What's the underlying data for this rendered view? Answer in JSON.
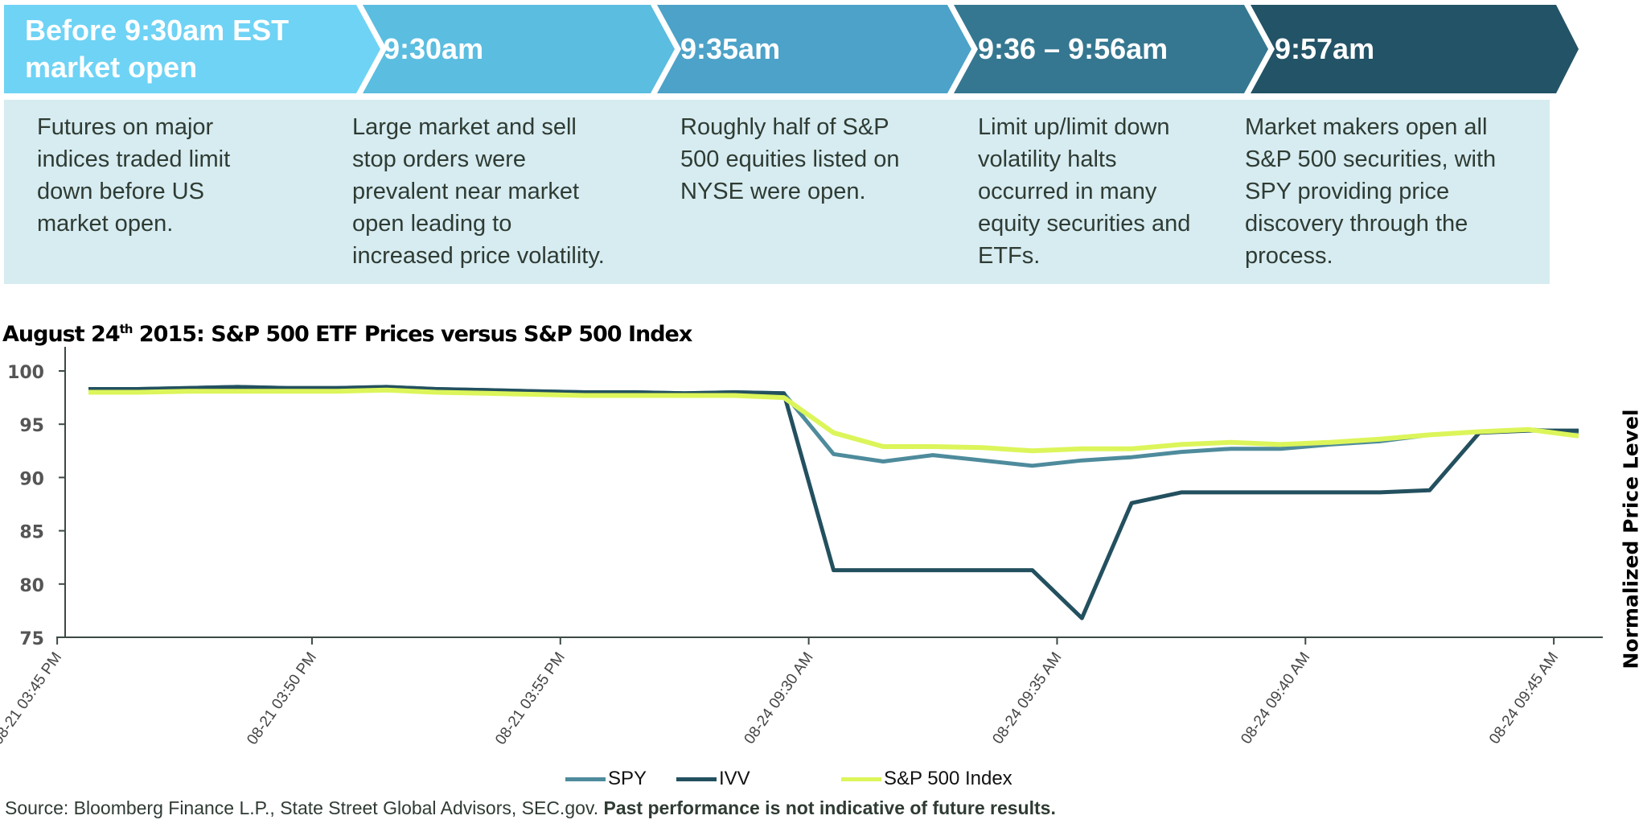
{
  "timeline": {
    "stages": [
      {
        "title_lines": [
          "Before 9:30am EST",
          "market open"
        ],
        "description": [
          "Futures on major",
          "indices traded limit",
          "down before US",
          "market open."
        ],
        "color": "#6fd3f5"
      },
      {
        "title_lines": [
          "9:30am"
        ],
        "description": [
          "Large market and sell",
          "stop orders were",
          "prevalent near market",
          "open leading to",
          "increased price volatility."
        ],
        "color": "#5bbde0"
      },
      {
        "title_lines": [
          "9:35am"
        ],
        "description": [
          "Roughly half of S&P",
          "500 equities listed on",
          "NYSE were open."
        ],
        "color": "#4ca2c8"
      },
      {
        "title_lines": [
          "9:36 – 9:56am"
        ],
        "description": [
          "Limit up/limit down",
          "volatility halts",
          "occurred in many",
          "equity securities and",
          "ETFs."
        ],
        "color": "#357790"
      },
      {
        "title_lines": [
          "9:57am"
        ],
        "description": [
          "Market makers open all",
          "S&P 500 securities, with",
          "SPY providing price",
          "discovery through the",
          "process."
        ],
        "color": "#235366"
      }
    ],
    "panel_color": "#d6ecf1"
  },
  "chart_data": {
    "type": "line",
    "title_prefix": "August 24",
    "title_sup": "th",
    "title_suffix": " 2015: S&P 500 ETF Prices versus S&P 500 Index",
    "xlabel": "",
    "ylabel": "Normalized Price Level",
    "ylim": [
      75,
      100
    ],
    "yticks": [
      100,
      95,
      90,
      85,
      80,
      75
    ],
    "grid": false,
    "legend_position": "bottom",
    "x": [
      "08-21 03:45 PM",
      "08-21 03:46 PM",
      "08-21 03:47 PM",
      "08-21 03:48 PM",
      "08-21 03:49 PM",
      "08-21 03:50 PM",
      "08-21 03:51 PM",
      "08-21 03:52 PM",
      "08-21 03:53 PM",
      "08-21 03:54 PM",
      "08-21 03:55 PM",
      "08-21 03:56 PM",
      "08-21 03:57 PM",
      "08-21 03:58 PM",
      "08-21 03:59 PM",
      "08-24 09:30 AM",
      "08-24 09:31 AM",
      "08-24 09:32 AM",
      "08-24 09:33 AM",
      "08-24 09:34 AM",
      "08-24 09:35 AM",
      "08-24 09:36 AM",
      "08-24 09:37 AM",
      "08-24 09:38 AM",
      "08-24 09:39 AM",
      "08-24 09:40 AM",
      "08-24 09:41 AM",
      "08-24 09:42 AM",
      "08-24 09:43 AM",
      "08-24 09:44 AM",
      "08-24 09:45 AM"
    ],
    "xtick_labels": [
      "08-21 03:45 PM",
      "08-21 03:50 PM",
      "08-21 03:55 PM",
      "08-24 09:30 AM",
      "08-24 09:35 AM",
      "08-24 09:40 AM",
      "08-24 09:45 AM"
    ],
    "xtick_every": 5,
    "series": [
      {
        "name": "SPY",
        "color": "#4e8b9c",
        "values": [
          98.3,
          98.3,
          98.4,
          98.5,
          98.4,
          98.4,
          98.5,
          98.3,
          98.2,
          98.1,
          98.0,
          98.0,
          97.9,
          98.0,
          97.9,
          92.2,
          91.5,
          92.1,
          91.6,
          91.1,
          91.6,
          91.9,
          92.4,
          92.7,
          92.7,
          93.1,
          93.4,
          94.0,
          94.3,
          94.5,
          94.2
        ]
      },
      {
        "name": "IVV",
        "color": "#23505f",
        "values": [
          98.3,
          98.3,
          98.4,
          98.5,
          98.4,
          98.4,
          98.5,
          98.3,
          98.2,
          98.1,
          98.0,
          98.0,
          97.9,
          98.0,
          97.9,
          81.3,
          81.3,
          81.3,
          81.3,
          81.3,
          76.8,
          87.6,
          88.6,
          88.6,
          88.6,
          88.6,
          88.6,
          88.8,
          94.2,
          94.4,
          94.4
        ]
      },
      {
        "name": "S&P 500 Index",
        "color": "#dcf55a",
        "values": [
          98.0,
          98.0,
          98.1,
          98.1,
          98.1,
          98.1,
          98.2,
          98.0,
          97.9,
          97.8,
          97.7,
          97.7,
          97.7,
          97.7,
          97.5,
          94.2,
          92.9,
          92.9,
          92.8,
          92.5,
          92.7,
          92.7,
          93.1,
          93.3,
          93.1,
          93.3,
          93.6,
          94.0,
          94.3,
          94.5,
          93.9
        ]
      }
    ]
  },
  "footer": {
    "source_text": "Source: Bloomberg Finance L.P., State Street Global Advisors, SEC.gov. ",
    "disclaimer": "Past performance is not indicative of future results."
  }
}
